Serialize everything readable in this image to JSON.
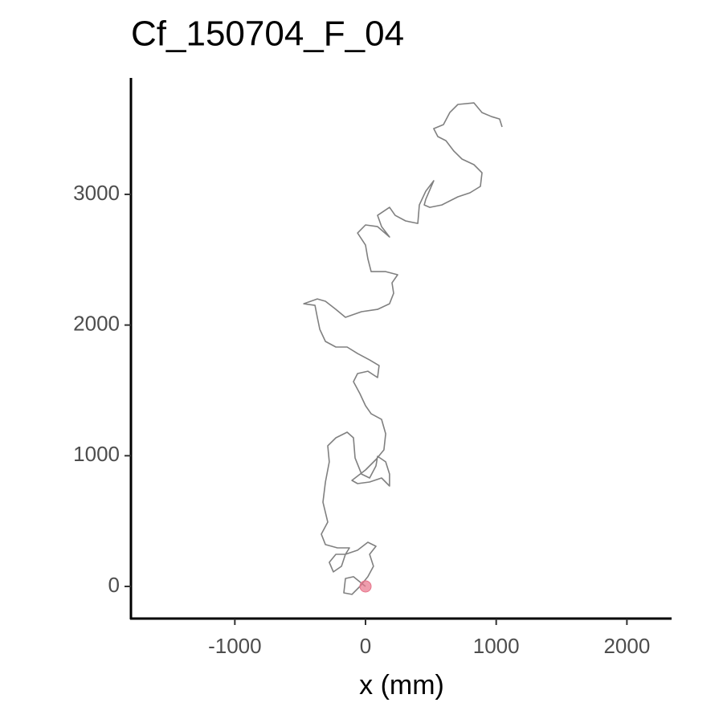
{
  "chart_data": {
    "type": "line",
    "title": "Cf_150704_F_04",
    "x_label": "x (mm)",
    "x": [
      0,
      -61,
      -92,
      -154,
      -166,
      -104,
      -43,
      18,
      61,
      31,
      80,
      18,
      -61,
      -154,
      -227,
      -277,
      -246,
      -184,
      -154,
      -123,
      -215,
      -307,
      -338,
      -289,
      -326,
      -307,
      -277,
      -289,
      -227,
      -141,
      -92,
      -80,
      -31,
      31,
      80,
      92,
      154,
      184,
      184,
      123,
      31,
      -61,
      -104,
      0,
      80,
      141,
      154,
      123,
      43,
      0,
      -43,
      -92,
      -61,
      18,
      92,
      104,
      31,
      -61,
      -141,
      -227,
      -307,
      -350,
      -369,
      -387,
      -473,
      -369,
      -307,
      -227,
      -154,
      -31,
      92,
      184,
      215,
      203,
      246,
      154,
      43,
      18,
      0,
      -61,
      0,
      92,
      184,
      123,
      92,
      184,
      227,
      307,
      400,
      412,
      461,
      522,
      461,
      449,
      492,
      584,
      707,
      799,
      879,
      891,
      830,
      738,
      676,
      615,
      553,
      522,
      596,
      645,
      707,
      830,
      891,
      965,
      1026,
      1045
    ],
    "values": [
      0,
      49,
      74,
      61,
      -49,
      -61,
      0,
      74,
      154,
      246,
      307,
      338,
      277,
      246,
      246,
      184,
      111,
      154,
      246,
      295,
      295,
      320,
      400,
      492,
      645,
      799,
      953,
      1076,
      1137,
      1180,
      1137,
      983,
      860,
      830,
      922,
      996,
      953,
      860,
      768,
      830,
      799,
      787,
      811,
      891,
      971,
      1045,
      1168,
      1278,
      1321,
      1383,
      1475,
      1567,
      1629,
      1647,
      1598,
      1690,
      1733,
      1782,
      1832,
      1832,
      1875,
      1967,
      2059,
      2151,
      2163,
      2200,
      2182,
      2120,
      2059,
      2102,
      2120,
      2163,
      2243,
      2323,
      2385,
      2409,
      2409,
      2508,
      2612,
      2704,
      2766,
      2753,
      2674,
      2753,
      2839,
      2901,
      2839,
      2797,
      2778,
      2919,
      3024,
      3104,
      2962,
      2919,
      2901,
      2919,
      2981,
      3012,
      3061,
      3165,
      3227,
      3270,
      3331,
      3411,
      3442,
      3503,
      3534,
      3626,
      3688,
      3700,
      3626,
      3595,
      3577,
      3516
    ],
    "color": "#808080",
    "start_point": {
      "x": 0,
      "y": 0,
      "color": "#e8748a"
    },
    "xlim": [
      -1795,
      2342
    ],
    "ylim": [
      -246,
      3891
    ],
    "xticks": [
      -1000,
      0,
      1000,
      2000
    ],
    "yticks": [
      0,
      1000,
      2000,
      3000
    ]
  }
}
